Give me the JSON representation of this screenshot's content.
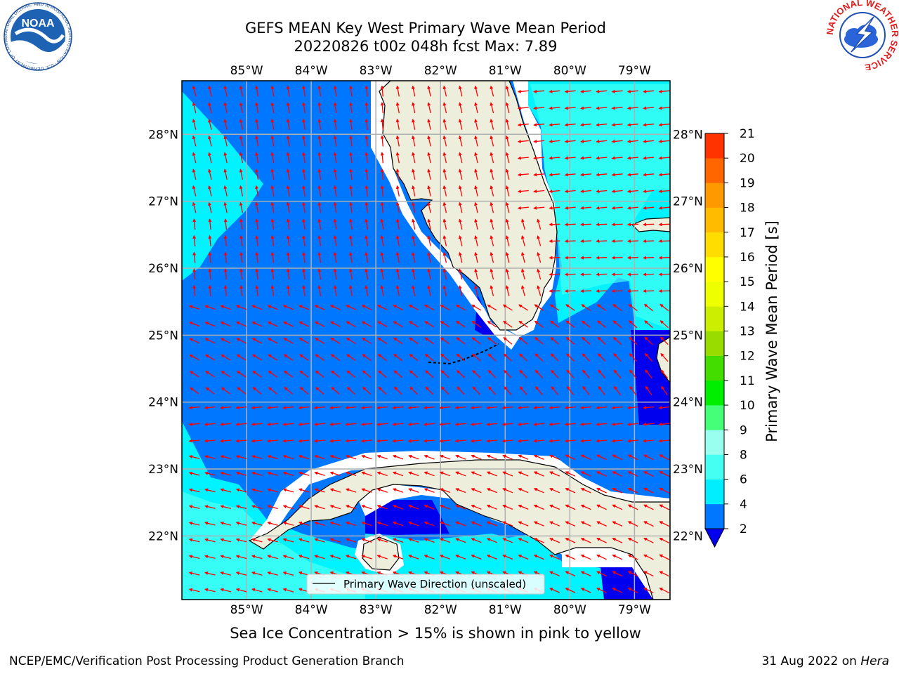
{
  "title": {
    "line1": "GEFS MEAN Key West Primary Wave Mean Period",
    "line2": "20220826 t00z 048h fcst   Max: 7.89"
  },
  "map": {
    "lon_labels": [
      "85°W",
      "84°W",
      "83°W",
      "82°W",
      "81°W",
      "80°W",
      "79°W"
    ],
    "lon_values": [
      -85,
      -84,
      -83,
      -82,
      -81,
      -80,
      -79
    ],
    "lat_labels": [
      "28°N",
      "27°N",
      "26°N",
      "25°N",
      "24°N",
      "23°N",
      "22°N"
    ],
    "lat_values": [
      28,
      27,
      26,
      25,
      24,
      23,
      22
    ],
    "lon_range": [
      -86,
      -78.45
    ],
    "lat_range": [
      21.05,
      28.8
    ],
    "legend_label": "Primary Wave Direction (unscaled)",
    "colors": {
      "land": "#eeeedd",
      "band_2_4": "#0077ff",
      "band_4_6": "#00f3ff",
      "band_6_8": "#44fff2",
      "below_2": "#0000ee",
      "arrow": "#ff0000",
      "grid": "#b0b0b0"
    }
  },
  "colorbar": {
    "label": "Primary Wave Mean Period [s]",
    "ticks": [
      "2",
      "4",
      "6",
      "8",
      "9",
      "10",
      "11",
      "12",
      "13",
      "14",
      "15",
      "16",
      "17",
      "18",
      "19",
      "20",
      "21"
    ],
    "colors": [
      "#0077ff",
      "#00eeff",
      "#44fff2",
      "#99ffee",
      "#44ff77",
      "#00ee00",
      "#44dd00",
      "#99dd00",
      "#ccee00",
      "#eeff00",
      "#ffff00",
      "#ffdd00",
      "#ffbb00",
      "#ff9900",
      "#ff6600",
      "#ff3300",
      "#ff0000"
    ],
    "under_color": "#0000ee"
  },
  "note": "Sea Ice Concentration > 15% is shown in pink to yellow",
  "footer": {
    "left": "NCEP/EMC/Verification Post Processing Product Generation Branch",
    "right_prefix": "31 Aug 2022 on ",
    "right_host": "Hera"
  },
  "logos": {
    "noaa": "NOAA",
    "noaa_ring": "NATIONAL OCEANIC AND ATMOSPHERIC ADMINISTRATION · U.S. DEPARTMENT OF COMMERCE ·",
    "nws_ring": "NATIONAL WEATHER SERVICE"
  }
}
